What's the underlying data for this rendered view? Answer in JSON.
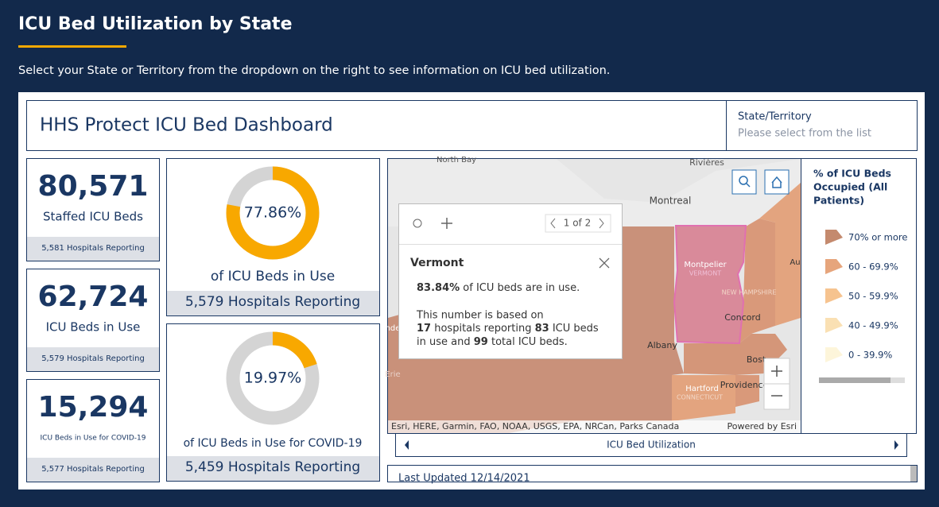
{
  "header": {
    "title": "ICU Bed Utilization by State",
    "subtitle": "Select your State or Territory from the dropdown on the right to see information on ICU bed utilization."
  },
  "dashboard": {
    "title": "HHS Protect ICU Bed Dashboard",
    "selector_label": "State/Territory",
    "selector_placeholder": "Please select from the list"
  },
  "stats": [
    {
      "value": "80,571",
      "label": "Staffed ICU Beds",
      "footer": "5,581 Hospitals Reporting"
    },
    {
      "value": "62,724",
      "label": "ICU Beds in Use",
      "footer": "5,579 Hospitals Reporting"
    },
    {
      "value": "15,294",
      "label": "ICU Beds in Use for COVID-19",
      "footer": "5,577 Hospitals Reporting"
    }
  ],
  "gauges": [
    {
      "value": 77.86,
      "value_label": "77.86%",
      "label": "of ICU Beds in Use",
      "footer": "5,579 Hospitals Reporting",
      "color": "#f8a800"
    },
    {
      "value": 19.97,
      "value_label": "19.97%",
      "label": "of ICU Beds in Use for COVID-19",
      "footer": "5,459 Hospitals Reporting",
      "color": "#f8a800"
    }
  ],
  "map": {
    "labels": [
      "North Bay",
      "Rivières",
      "Montreal",
      "Montpelier",
      "VERMONT",
      "NEW HAMPSHIRE",
      "Concord",
      "Albany",
      "Bost",
      "Hartford",
      "CONNECTICUT",
      "Providence",
      "Au",
      "nde",
      "Erie"
    ],
    "attribution": "Esri, HERE, Garmin, FAO, NOAA, USGS, EPA, NRCan, Parks Canada",
    "powered_by": "Powered by Esri"
  },
  "popup": {
    "pager": "1 of 2",
    "title": "Vermont",
    "stat_percent": "83.84%",
    "stat_text": "of ICU beds are in use.",
    "basis_intro": "This number is based on",
    "hospitals": "17",
    "hospitals_text": "hospitals reporting",
    "in_use": "83",
    "in_use_text": "ICU beds",
    "in_use_text2": "in use and",
    "total": "99",
    "total_text": "total ICU beds."
  },
  "legend": {
    "title": [
      "% of ICU Beds",
      "Occupied (All",
      "Patients)"
    ],
    "items": [
      {
        "label": "70% or more",
        "color": "#c48a6e"
      },
      {
        "label": "60 - 69.9%",
        "color": "#e6a57c"
      },
      {
        "label": "50 - 59.9%",
        "color": "#f6c38f"
      },
      {
        "label": "40 - 49.9%",
        "color": "#fae0b3"
      },
      {
        "label": "0 - 39.9%",
        "color": "#fdf5da"
      }
    ]
  },
  "tab": "ICU Bed Utilization",
  "footer": "Last Updated 12/14/2021"
}
